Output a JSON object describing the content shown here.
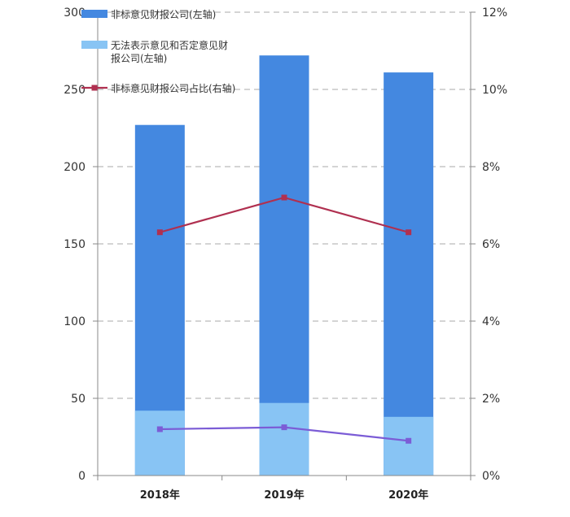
{
  "chart_data": {
    "type": "bar",
    "categories": [
      "2018年",
      "2019年",
      "2020年"
    ],
    "series": [
      {
        "name": "非标意见财报公司(左轴)",
        "type": "bar-stacked",
        "axis": "left",
        "color": "#4488e0",
        "values": [
          227,
          272,
          261
        ]
      },
      {
        "name": "无法表示意见和否定意见财报公司(左轴)",
        "type": "bar-stacked",
        "axis": "left",
        "color": "#88c4f4",
        "values": [
          42,
          47,
          38
        ]
      },
      {
        "name": "非标意见财报公司占比(右轴)",
        "type": "line",
        "axis": "right",
        "color": "#b03050",
        "values": [
          6.3,
          7.2,
          6.3
        ]
      },
      {
        "name": "",
        "type": "line",
        "axis": "right",
        "color": "#7b5cd6",
        "values": [
          1.2,
          1.25,
          0.9
        ]
      }
    ],
    "left_axis": {
      "ylim": [
        0,
        300
      ],
      "ticks": [
        "0",
        "50",
        "100",
        "150",
        "200",
        "250",
        "300"
      ]
    },
    "right_axis": {
      "ylim": [
        0,
        12
      ],
      "ticks": [
        "0%",
        "2%",
        "4%",
        "6%",
        "8%",
        "10%",
        "12%"
      ]
    },
    "legend": {
      "placement": "top-left",
      "entries": [
        {
          "lines": [
            "非标意见财报公司(左轴)"
          ],
          "color": "#4488e0",
          "marker": "bar"
        },
        {
          "lines": [
            "无法表示意见和否定意见财",
            "报公司(左轴)"
          ],
          "color": "#88c4f4",
          "marker": "bar"
        },
        {
          "lines": [
            "非标意见财报公司占比(右轴)"
          ],
          "color": "#b03050",
          "marker": "line"
        }
      ]
    },
    "grid": true,
    "xlabel": "",
    "ylabel": "",
    "title": ""
  }
}
